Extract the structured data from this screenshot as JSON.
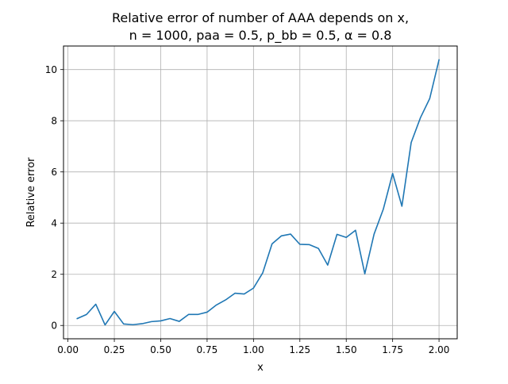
{
  "chart_data": {
    "type": "line",
    "title_line1": "Relative error of number of AAA depends on x,",
    "title_line2": "n = 1000, paa = 0.5, p_bb = 0.5, α = 0.8",
    "xlabel": "x",
    "ylabel": "Relative error",
    "xlim": [
      -0.024,
      2.098
    ],
    "ylim": [
      -0.52,
      10.92
    ],
    "xticks": [
      0.0,
      0.25,
      0.5,
      0.75,
      1.0,
      1.25,
      1.5,
      1.75,
      2.0
    ],
    "xtick_labels": [
      "0.00",
      "0.25",
      "0.50",
      "0.75",
      "1.00",
      "1.25",
      "1.50",
      "1.75",
      "2.00"
    ],
    "yticks": [
      0,
      2,
      4,
      6,
      8,
      10
    ],
    "ytick_labels": [
      "0",
      "2",
      "4",
      "6",
      "8",
      "10"
    ],
    "grid": true,
    "line_color": "#1f77b4",
    "series": [
      {
        "x": [
          0.05,
          0.1,
          0.15,
          0.2,
          0.25,
          0.3,
          0.35,
          0.4,
          0.45,
          0.5,
          0.55,
          0.6,
          0.65,
          0.7,
          0.75,
          0.8,
          0.85,
          0.9,
          0.95,
          1.0,
          1.05,
          1.1,
          1.15,
          1.2,
          1.25,
          1.3,
          1.35,
          1.4,
          1.45,
          1.5,
          1.55,
          1.6,
          1.65,
          1.7,
          1.75,
          1.8,
          1.85,
          1.9,
          1.95,
          2.0
        ],
        "values": [
          0.27,
          0.43,
          0.83,
          0.02,
          0.55,
          0.06,
          0.03,
          0.07,
          0.15,
          0.18,
          0.27,
          0.16,
          0.43,
          0.43,
          0.52,
          0.8,
          1.0,
          1.26,
          1.23,
          1.46,
          2.06,
          3.19,
          3.5,
          3.57,
          3.17,
          3.16,
          3.01,
          2.36,
          3.56,
          3.44,
          3.72,
          2.02,
          3.57,
          4.55,
          5.94,
          4.66,
          7.15,
          8.12,
          8.87,
          10.38
        ]
      }
    ]
  }
}
